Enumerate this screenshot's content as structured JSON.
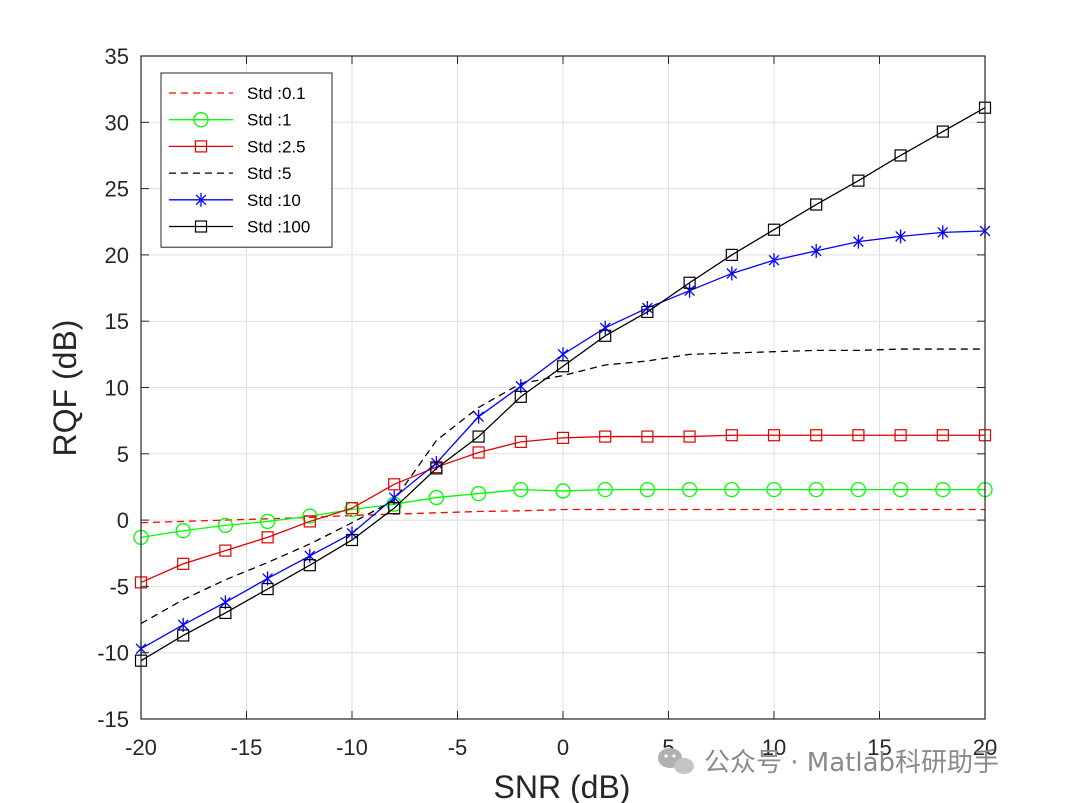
{
  "watermark": {
    "text": "公众号 · Matlab科研助手",
    "icon": "wechat-icon"
  },
  "chart_data": {
    "type": "line",
    "title": "",
    "xlabel": "SNR (dB)",
    "ylabel": "RQF (dB)",
    "xlim": [
      -20,
      20
    ],
    "ylim": [
      -15,
      35
    ],
    "xticks": [
      -20,
      -15,
      -10,
      -5,
      0,
      5,
      10,
      15,
      20
    ],
    "yticks": [
      -15,
      -10,
      -5,
      0,
      5,
      10,
      15,
      20,
      25,
      30,
      35
    ],
    "grid": true,
    "legend_position": "top-left",
    "x": [
      -20,
      -18,
      -16,
      -14,
      -12,
      -10,
      -8,
      -6,
      -4,
      -2,
      0,
      2,
      4,
      6,
      8,
      10,
      12,
      14,
      16,
      18,
      20
    ],
    "series": [
      {
        "name": "Std :0.1",
        "color": "#ff0000",
        "line": "dashed",
        "marker": "none",
        "values": [
          -0.2,
          -0.1,
          0.0,
          0.1,
          0.2,
          0.35,
          0.45,
          0.55,
          0.65,
          0.7,
          0.8,
          0.8,
          0.8,
          0.8,
          0.8,
          0.8,
          0.8,
          0.8,
          0.8,
          0.8,
          0.8
        ]
      },
      {
        "name": "Std :1",
        "color": "#00ff00",
        "line": "solid",
        "marker": "circle",
        "values": [
          -1.3,
          -0.8,
          -0.4,
          -0.1,
          0.3,
          0.8,
          1.2,
          1.7,
          2.0,
          2.3,
          2.2,
          2.3,
          2.3,
          2.3,
          2.3,
          2.3,
          2.3,
          2.3,
          2.3,
          2.3,
          2.3
        ]
      },
      {
        "name": "Std :2.5",
        "color": "#e00000",
        "line": "solid",
        "marker": "square",
        "values": [
          -4.7,
          -3.3,
          -2.3,
          -1.3,
          -0.1,
          0.9,
          2.7,
          4.0,
          5.1,
          5.9,
          6.2,
          6.3,
          6.3,
          6.3,
          6.4,
          6.4,
          6.4,
          6.4,
          6.4,
          6.4,
          6.4
        ]
      },
      {
        "name": "Std :5",
        "color": "#000000",
        "line": "dashed",
        "marker": "none",
        "values": [
          -7.8,
          -6.0,
          -4.5,
          -3.2,
          -1.8,
          -0.2,
          1.5,
          6.0,
          8.5,
          10.3,
          10.9,
          11.7,
          12.0,
          12.5,
          12.6,
          12.7,
          12.8,
          12.8,
          12.9,
          12.9,
          12.9
        ]
      },
      {
        "name": "Std :10",
        "color": "#0000ff",
        "line": "solid",
        "marker": "asterisk",
        "values": [
          -9.7,
          -7.9,
          -6.2,
          -4.4,
          -2.7,
          -1.0,
          1.7,
          4.3,
          7.8,
          10.1,
          12.5,
          14.5,
          16.0,
          17.3,
          18.6,
          19.6,
          20.3,
          21.0,
          21.4,
          21.7,
          21.8
        ]
      },
      {
        "name": "Std :100",
        "color": "#000000",
        "line": "solid",
        "marker": "square",
        "values": [
          -10.6,
          -8.7,
          -7.0,
          -5.2,
          -3.4,
          -1.5,
          0.9,
          3.9,
          6.3,
          9.3,
          11.6,
          13.9,
          15.7,
          17.9,
          20.0,
          21.9,
          23.8,
          25.6,
          27.5,
          29.3,
          31.1
        ]
      }
    ]
  }
}
